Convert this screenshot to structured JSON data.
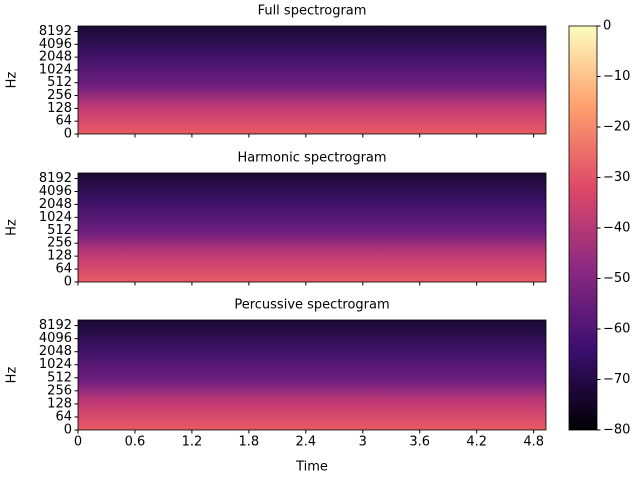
{
  "chart_data": [
    {
      "type": "spectrogram",
      "title": "Full spectrogram",
      "ylabel": "Hz",
      "yscale": "symlog",
      "linthresh": 64,
      "ylim": [
        0,
        11025
      ],
      "yticks": [
        0,
        64,
        128,
        256,
        512,
        1024,
        2048,
        4096,
        8192
      ]
    },
    {
      "type": "spectrogram",
      "title": "Harmonic spectrogram",
      "ylabel": "Hz",
      "yscale": "symlog",
      "linthresh": 64,
      "ylim": [
        0,
        11025
      ],
      "yticks": [
        0,
        64,
        128,
        256,
        512,
        1024,
        2048,
        4096,
        8192
      ]
    },
    {
      "type": "spectrogram",
      "title": "Percussive spectrogram",
      "ylabel": "Hz",
      "xlabel": "Time",
      "yscale": "symlog",
      "linthresh": 64,
      "ylim": [
        0,
        11025
      ],
      "yticks": [
        0,
        64,
        128,
        256,
        512,
        1024,
        2048,
        4096,
        8192
      ],
      "xlim": [
        0,
        4.93
      ],
      "xticks": [
        0,
        0.6,
        1.2,
        1.8,
        2.4,
        3,
        3.6,
        4.2,
        4.8
      ]
    },
    {
      "type": "colorbar",
      "colors": [
        "#000004",
        "#3b0f70",
        "#8c2981",
        "#de4968",
        "#fe9f6d",
        "#fcfdbf"
      ],
      "ylim": [
        -80,
        0
      ],
      "yticks": [
        {
          "value": 0,
          "label": "0"
        },
        {
          "value": -10,
          "label": "−10"
        },
        {
          "value": -20,
          "label": "−20"
        },
        {
          "value": -30,
          "label": "−30"
        },
        {
          "value": -40,
          "label": "−40"
        },
        {
          "value": -50,
          "label": "−50"
        },
        {
          "value": -60,
          "label": "−60"
        },
        {
          "value": -70,
          "label": "−70"
        },
        {
          "value": -80,
          "label": "−80"
        }
      ]
    }
  ]
}
